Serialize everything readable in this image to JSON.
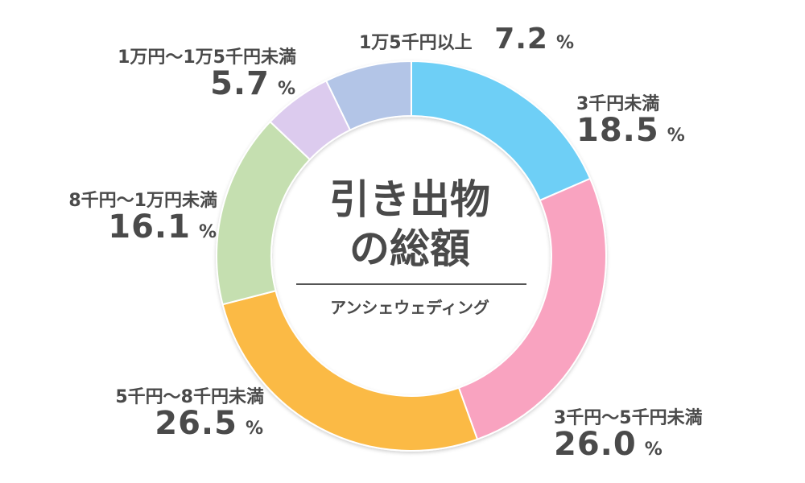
{
  "chart_data": {
    "type": "pie",
    "title": "引き出物の総額",
    "title_lines": [
      "引き出物",
      "の総額"
    ],
    "subtitle": "アンシェウェディング",
    "pct_unit": "%",
    "slices": [
      {
        "label": "3千円未満",
        "value": 18.5,
        "value_text": "18.5",
        "color": "#6ECFF6"
      },
      {
        "label": "3千円～5千円未満",
        "value": 26.0,
        "value_text": "26.0",
        "color": "#F9A3C0"
      },
      {
        "label": "5千円～8千円未満",
        "value": 26.5,
        "value_text": "26.5",
        "color": "#FBBA45"
      },
      {
        "label": "8千円～1万円未満",
        "value": 16.1,
        "value_text": "16.1",
        "color": "#C5DFB0"
      },
      {
        "label": "1万円～1万5千円未満",
        "value": 5.7,
        "value_text": "5.7",
        "color": "#DCCBEE"
      },
      {
        "label": "1万5千円以上",
        "value": 7.2,
        "value_text": "7.2",
        "color": "#B3C5E7"
      }
    ]
  }
}
